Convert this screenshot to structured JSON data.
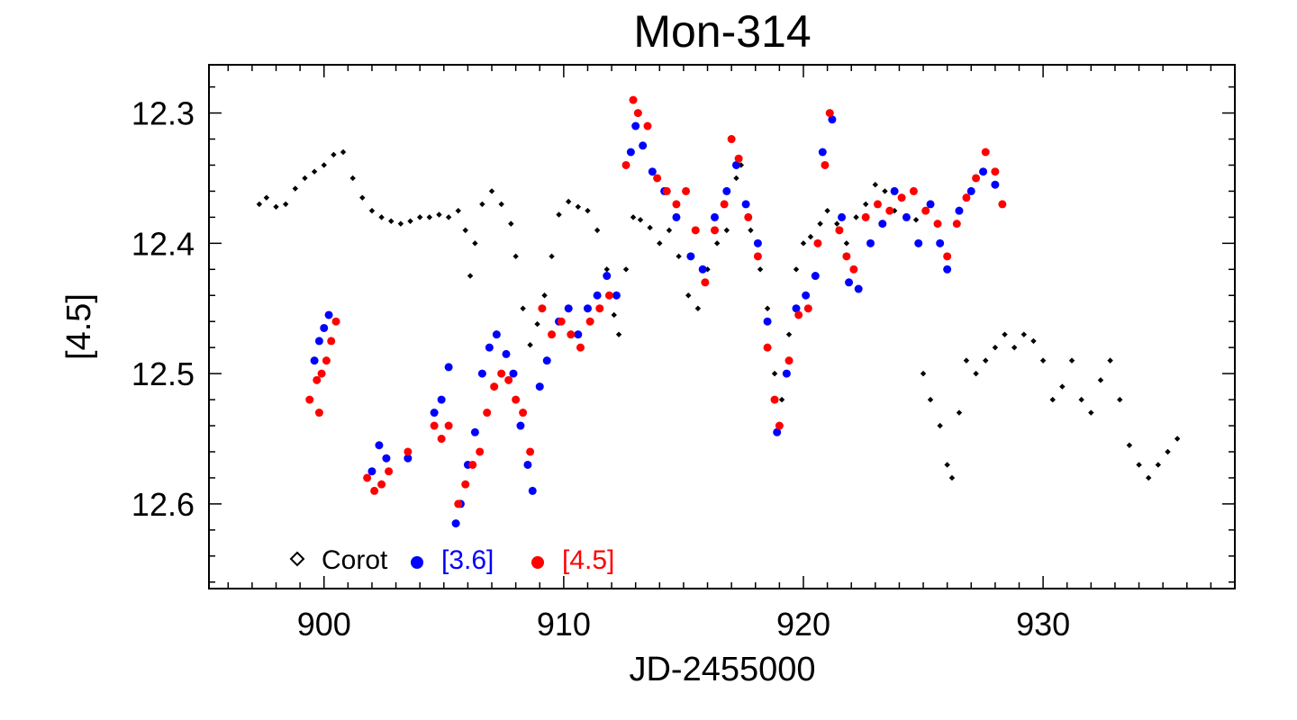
{
  "chart_data": {
    "type": "scatter",
    "title": "Mon-314",
    "xlabel": "JD-2455000",
    "ylabel": "[4.5]",
    "xlim": [
      895.2,
      938.0
    ],
    "ylim": [
      12.665,
      12.263
    ],
    "y_inverted": true,
    "x_ticks": [
      900,
      910,
      920,
      930
    ],
    "x_tick_labels": [
      "900",
      "910",
      "920",
      "930"
    ],
    "y_ticks": [
      12.3,
      12.4,
      12.5,
      12.6
    ],
    "y_tick_labels": [
      "12.3",
      "12.4",
      "12.5",
      "12.6"
    ],
    "legend_position": "bottom-left",
    "series": [
      {
        "name": "Corot",
        "color": "#000000",
        "marker": "diamond",
        "points": [
          [
            897.3,
            12.37
          ],
          [
            897.6,
            12.365
          ],
          [
            898.0,
            12.372
          ],
          [
            898.4,
            12.37
          ],
          [
            898.8,
            12.358
          ],
          [
            899.2,
            12.35
          ],
          [
            899.6,
            12.345
          ],
          [
            900.0,
            12.34
          ],
          [
            900.4,
            12.332
          ],
          [
            900.8,
            12.33
          ],
          [
            901.2,
            12.35
          ],
          [
            901.6,
            12.365
          ],
          [
            902.0,
            12.375
          ],
          [
            902.4,
            12.38
          ],
          [
            902.8,
            12.383
          ],
          [
            903.2,
            12.385
          ],
          [
            903.6,
            12.383
          ],
          [
            904.0,
            12.38
          ],
          [
            904.4,
            12.38
          ],
          [
            904.8,
            12.378
          ],
          [
            905.2,
            12.38
          ],
          [
            905.6,
            12.375
          ],
          [
            905.9,
            12.39
          ],
          [
            906.1,
            12.425
          ],
          [
            906.3,
            12.4
          ],
          [
            906.6,
            12.37
          ],
          [
            907.0,
            12.36
          ],
          [
            907.4,
            12.37
          ],
          [
            907.8,
            12.385
          ],
          [
            908.0,
            12.41
          ],
          [
            908.3,
            12.45
          ],
          [
            908.6,
            12.478
          ],
          [
            908.9,
            12.462
          ],
          [
            909.2,
            12.44
          ],
          [
            909.5,
            12.41
          ],
          [
            909.8,
            12.378
          ],
          [
            910.2,
            12.368
          ],
          [
            910.6,
            12.372
          ],
          [
            911.0,
            12.375
          ],
          [
            911.4,
            12.39
          ],
          [
            911.8,
            12.42
          ],
          [
            912.1,
            12.455
          ],
          [
            912.3,
            12.47
          ],
          [
            912.6,
            12.42
          ],
          [
            912.9,
            12.38
          ],
          [
            913.2,
            12.382
          ],
          [
            913.6,
            12.388
          ],
          [
            914.0,
            12.4
          ],
          [
            914.4,
            12.39
          ],
          [
            914.8,
            12.41
          ],
          [
            915.2,
            12.44
          ],
          [
            915.6,
            12.45
          ],
          [
            916.0,
            12.42
          ],
          [
            916.4,
            12.4
          ],
          [
            916.8,
            12.39
          ],
          [
            917.2,
            12.35
          ],
          [
            917.4,
            12.34
          ],
          [
            917.8,
            12.39
          ],
          [
            918.2,
            12.42
          ],
          [
            918.5,
            12.45
          ],
          [
            918.8,
            12.5
          ],
          [
            919.1,
            12.52
          ],
          [
            919.4,
            12.47
          ],
          [
            919.7,
            12.42
          ],
          [
            920.0,
            12.4
          ],
          [
            920.3,
            12.395
          ],
          [
            920.7,
            12.385
          ],
          [
            921.0,
            12.375
          ],
          [
            921.4,
            12.385
          ],
          [
            921.8,
            12.4
          ],
          [
            922.2,
            12.38
          ],
          [
            922.6,
            12.37
          ],
          [
            923.0,
            12.355
          ],
          [
            923.4,
            12.36
          ],
          [
            923.8,
            12.375
          ],
          [
            924.3,
            12.38
          ],
          [
            924.7,
            12.382
          ],
          [
            925.0,
            12.5
          ],
          [
            925.3,
            12.52
          ],
          [
            925.7,
            12.54
          ],
          [
            926.0,
            12.57
          ],
          [
            926.2,
            12.58
          ],
          [
            926.5,
            12.53
          ],
          [
            926.8,
            12.49
          ],
          [
            927.2,
            12.5
          ],
          [
            927.6,
            12.49
          ],
          [
            928.0,
            12.48
          ],
          [
            928.4,
            12.47
          ],
          [
            928.8,
            12.48
          ],
          [
            929.2,
            12.47
          ],
          [
            929.6,
            12.475
          ],
          [
            930.0,
            12.49
          ],
          [
            930.4,
            12.52
          ],
          [
            930.8,
            12.51
          ],
          [
            931.2,
            12.49
          ],
          [
            931.6,
            12.52
          ],
          [
            932.0,
            12.53
          ],
          [
            932.4,
            12.505
          ],
          [
            932.8,
            12.49
          ],
          [
            933.2,
            12.52
          ],
          [
            933.6,
            12.555
          ],
          [
            934.0,
            12.57
          ],
          [
            934.4,
            12.58
          ],
          [
            934.8,
            12.57
          ],
          [
            935.2,
            12.56
          ],
          [
            935.6,
            12.55
          ]
        ]
      },
      {
        "name": "[3.6]",
        "color": "#0000ff",
        "marker": "circle",
        "points": [
          [
            899.6,
            12.49
          ],
          [
            899.8,
            12.475
          ],
          [
            900.0,
            12.465
          ],
          [
            900.2,
            12.455
          ],
          [
            902.0,
            12.575
          ],
          [
            902.3,
            12.555
          ],
          [
            902.6,
            12.565
          ],
          [
            903.5,
            12.565
          ],
          [
            904.6,
            12.53
          ],
          [
            904.9,
            12.52
          ],
          [
            905.2,
            12.495
          ],
          [
            905.5,
            12.615
          ],
          [
            905.7,
            12.6
          ],
          [
            906.0,
            12.57
          ],
          [
            906.3,
            12.545
          ],
          [
            906.6,
            12.5
          ],
          [
            906.9,
            12.48
          ],
          [
            907.2,
            12.47
          ],
          [
            907.6,
            12.485
          ],
          [
            907.9,
            12.5
          ],
          [
            908.2,
            12.54
          ],
          [
            908.5,
            12.57
          ],
          [
            908.7,
            12.59
          ],
          [
            909.0,
            12.51
          ],
          [
            909.3,
            12.49
          ],
          [
            909.8,
            12.46
          ],
          [
            910.2,
            12.45
          ],
          [
            910.6,
            12.47
          ],
          [
            911.0,
            12.45
          ],
          [
            911.4,
            12.44
          ],
          [
            911.8,
            12.425
          ],
          [
            912.2,
            12.44
          ],
          [
            912.8,
            12.33
          ],
          [
            913.0,
            12.31
          ],
          [
            913.3,
            12.325
          ],
          [
            913.7,
            12.345
          ],
          [
            914.2,
            12.36
          ],
          [
            914.7,
            12.38
          ],
          [
            915.3,
            12.41
          ],
          [
            915.8,
            12.42
          ],
          [
            916.3,
            12.38
          ],
          [
            916.8,
            12.36
          ],
          [
            917.2,
            12.34
          ],
          [
            917.6,
            12.37
          ],
          [
            918.1,
            12.4
          ],
          [
            918.5,
            12.46
          ],
          [
            918.9,
            12.545
          ],
          [
            919.3,
            12.5
          ],
          [
            919.7,
            12.45
          ],
          [
            920.1,
            12.44
          ],
          [
            920.5,
            12.425
          ],
          [
            920.8,
            12.33
          ],
          [
            921.2,
            12.305
          ],
          [
            921.6,
            12.38
          ],
          [
            921.9,
            12.43
          ],
          [
            922.3,
            12.435
          ],
          [
            922.8,
            12.4
          ],
          [
            923.3,
            12.385
          ],
          [
            923.8,
            12.36
          ],
          [
            924.3,
            12.38
          ],
          [
            924.8,
            12.4
          ],
          [
            925.3,
            12.37
          ],
          [
            925.7,
            12.4
          ],
          [
            926.0,
            12.42
          ],
          [
            926.5,
            12.375
          ],
          [
            927.0,
            12.36
          ],
          [
            927.5,
            12.345
          ],
          [
            928.0,
            12.355
          ]
        ]
      },
      {
        "name": "[4.5]",
        "color": "#ff0000",
        "marker": "circle",
        "points": [
          [
            899.4,
            12.52
          ],
          [
            899.7,
            12.505
          ],
          [
            899.9,
            12.5
          ],
          [
            900.1,
            12.49
          ],
          [
            900.3,
            12.475
          ],
          [
            900.5,
            12.46
          ],
          [
            899.8,
            12.53
          ],
          [
            901.8,
            12.58
          ],
          [
            902.1,
            12.59
          ],
          [
            902.4,
            12.585
          ],
          [
            902.7,
            12.575
          ],
          [
            903.5,
            12.56
          ],
          [
            904.6,
            12.54
          ],
          [
            904.9,
            12.55
          ],
          [
            905.2,
            12.54
          ],
          [
            905.6,
            12.6
          ],
          [
            905.9,
            12.585
          ],
          [
            906.2,
            12.57
          ],
          [
            906.5,
            12.56
          ],
          [
            906.8,
            12.53
          ],
          [
            907.1,
            12.51
          ],
          [
            907.4,
            12.5
          ],
          [
            907.7,
            12.505
          ],
          [
            908.0,
            12.52
          ],
          [
            908.3,
            12.53
          ],
          [
            908.6,
            12.56
          ],
          [
            909.1,
            12.45
          ],
          [
            909.5,
            12.47
          ],
          [
            909.9,
            12.46
          ],
          [
            910.3,
            12.47
          ],
          [
            910.7,
            12.48
          ],
          [
            911.1,
            12.46
          ],
          [
            911.5,
            12.45
          ],
          [
            911.9,
            12.44
          ],
          [
            912.6,
            12.34
          ],
          [
            912.9,
            12.29
          ],
          [
            913.1,
            12.3
          ],
          [
            913.5,
            12.31
          ],
          [
            913.9,
            12.35
          ],
          [
            914.3,
            12.36
          ],
          [
            914.7,
            12.37
          ],
          [
            915.1,
            12.36
          ],
          [
            915.5,
            12.39
          ],
          [
            915.9,
            12.43
          ],
          [
            916.3,
            12.39
          ],
          [
            916.7,
            12.37
          ],
          [
            917.0,
            12.32
          ],
          [
            917.3,
            12.335
          ],
          [
            917.7,
            12.38
          ],
          [
            918.1,
            12.41
          ],
          [
            918.5,
            12.48
          ],
          [
            918.8,
            12.52
          ],
          [
            919.0,
            12.54
          ],
          [
            919.4,
            12.49
          ],
          [
            919.8,
            12.455
          ],
          [
            920.2,
            12.45
          ],
          [
            920.6,
            12.4
          ],
          [
            920.9,
            12.34
          ],
          [
            921.1,
            12.3
          ],
          [
            921.5,
            12.39
          ],
          [
            921.8,
            12.41
          ],
          [
            922.1,
            12.42
          ],
          [
            922.6,
            12.38
          ],
          [
            923.1,
            12.37
          ],
          [
            923.6,
            12.375
          ],
          [
            924.1,
            12.365
          ],
          [
            924.6,
            12.36
          ],
          [
            925.1,
            12.375
          ],
          [
            925.6,
            12.385
          ],
          [
            926.0,
            12.41
          ],
          [
            926.4,
            12.385
          ],
          [
            926.8,
            12.365
          ],
          [
            927.2,
            12.35
          ],
          [
            927.6,
            12.33
          ],
          [
            928.0,
            12.345
          ],
          [
            928.3,
            12.37
          ]
        ]
      }
    ],
    "legend": [
      {
        "label": "Corot",
        "color": "#000000",
        "marker": "diamond"
      },
      {
        "label": "[3.6]",
        "color": "#0000ff",
        "marker": "circle"
      },
      {
        "label": "[4.5]",
        "color": "#ff0000",
        "marker": "circle"
      }
    ]
  }
}
